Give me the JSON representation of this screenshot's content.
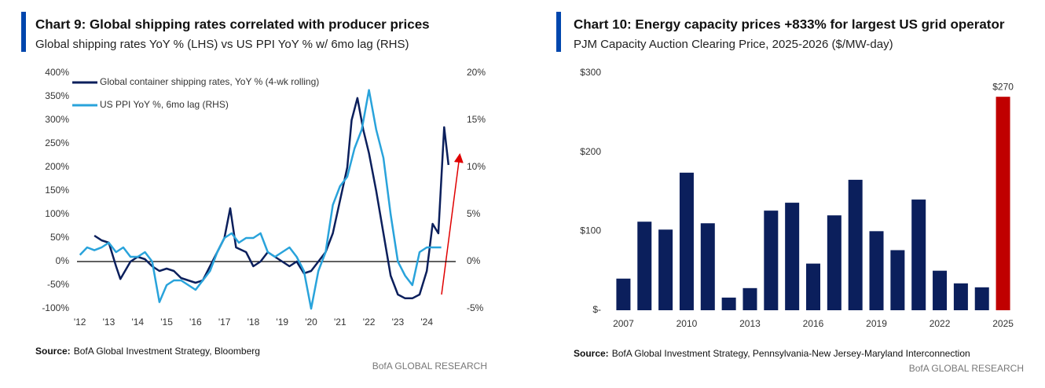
{
  "chart_data": [
    {
      "type": "line",
      "title": "Chart 9: Global shipping rates correlated with producer prices",
      "subtitle": "Global shipping rates YoY % (LHS) vs US PPI YoY % w/ 6mo lag (RHS)",
      "source_label": "Source:",
      "source": "BofA Global Investment Strategy, Bloomberg",
      "credit": "BofA GLOBAL RESEARCH",
      "legend": "upper left",
      "zero_line": true,
      "xlim": [
        2011.9,
        2025.0
      ],
      "xticks": [
        {
          "value": 2012,
          "label": "'12"
        },
        {
          "value": 2013,
          "label": "'13"
        },
        {
          "value": 2014,
          "label": "'14"
        },
        {
          "value": 2015,
          "label": "'15"
        },
        {
          "value": 2016,
          "label": "'16"
        },
        {
          "value": 2017,
          "label": "'17"
        },
        {
          "value": 2018,
          "label": "'18"
        },
        {
          "value": 2019,
          "label": "'19"
        },
        {
          "value": 2020,
          "label": "'20"
        },
        {
          "value": 2021,
          "label": "'21"
        },
        {
          "value": 2022,
          "label": "'22"
        },
        {
          "value": 2023,
          "label": "'23"
        },
        {
          "value": 2024,
          "label": "'24"
        }
      ],
      "ylim": [
        -100,
        400
      ],
      "yticks": [
        {
          "value": 400,
          "label": "400%"
        },
        {
          "value": 350,
          "label": "350%"
        },
        {
          "value": 300,
          "label": "300%"
        },
        {
          "value": 250,
          "label": "250%"
        },
        {
          "value": 200,
          "label": "200%"
        },
        {
          "value": 150,
          "label": "150%"
        },
        {
          "value": 100,
          "label": "100%"
        },
        {
          "value": 50,
          "label": "50%"
        },
        {
          "value": 0,
          "label": "0%"
        },
        {
          "value": -50,
          "label": "-50%"
        },
        {
          "value": -100,
          "label": "-100%"
        }
      ],
      "y2lim": [
        -5,
        20
      ],
      "y2ticks": [
        {
          "value": 20,
          "label": "20%"
        },
        {
          "value": 15,
          "label": "15%"
        },
        {
          "value": 10,
          "label": "10%"
        },
        {
          "value": 5,
          "label": "5%"
        },
        {
          "value": 0,
          "label": "0%"
        },
        {
          "value": -5,
          "label": "-5%"
        }
      ],
      "series": [
        {
          "name": "Global container shipping rates, YoY % (4-wk rolling)",
          "color": "#0b1f5c",
          "x": [
            2012.5,
            2012.75,
            2013.0,
            2013.25,
            2013.4,
            2013.75,
            2014.0,
            2014.25,
            2014.5,
            2014.75,
            2015.0,
            2015.25,
            2015.5,
            2015.75,
            2016.0,
            2016.25,
            2016.5,
            2016.75,
            2017.0,
            2017.2,
            2017.4,
            2017.75,
            2018.0,
            2018.25,
            2018.5,
            2018.75,
            2019.0,
            2019.25,
            2019.5,
            2019.75,
            2020.0,
            2020.25,
            2020.5,
            2020.75,
            2021.0,
            2021.25,
            2021.4,
            2021.6,
            2021.8,
            2022.0,
            2022.25,
            2022.5,
            2022.75,
            2023.0,
            2023.25,
            2023.5,
            2023.75,
            2024.0,
            2024.2,
            2024.4,
            2024.6,
            2024.75
          ],
          "values": [
            55,
            45,
            40,
            -10,
            -37,
            0,
            10,
            5,
            -10,
            -20,
            -15,
            -20,
            -35,
            -40,
            -45,
            -40,
            -10,
            20,
            50,
            113,
            30,
            20,
            -10,
            0,
            20,
            10,
            0,
            -10,
            0,
            -25,
            -20,
            0,
            20,
            60,
            130,
            200,
            300,
            347,
            280,
            230,
            150,
            60,
            -30,
            -70,
            -78,
            -78,
            -70,
            -20,
            80,
            60,
            285,
            205
          ]
        },
        {
          "name": "US PPI YoY %, 6mo lag (RHS)",
          "color": "#29a3db",
          "axis": "y2",
          "x": [
            2012.0,
            2012.25,
            2012.5,
            2012.75,
            2013.0,
            2013.25,
            2013.5,
            2013.75,
            2014.0,
            2014.25,
            2014.5,
            2014.75,
            2015.0,
            2015.25,
            2015.5,
            2015.75,
            2016.0,
            2016.25,
            2016.5,
            2016.75,
            2017.0,
            2017.25,
            2017.5,
            2017.75,
            2018.0,
            2018.25,
            2018.5,
            2018.75,
            2019.0,
            2019.25,
            2019.5,
            2019.75,
            2020.0,
            2020.25,
            2020.5,
            2020.75,
            2021.0,
            2021.25,
            2021.5,
            2021.75,
            2022.0,
            2022.25,
            2022.5,
            2022.75,
            2023.0,
            2023.25,
            2023.5,
            2023.75,
            2024.0,
            2024.25,
            2024.5
          ],
          "values": [
            0.7,
            1.5,
            1.2,
            1.5,
            2,
            1,
            1.5,
            0.5,
            0.5,
            1,
            0,
            -4.3,
            -2.5,
            -2,
            -2,
            -2.5,
            -3,
            -2,
            -1,
            1,
            2.5,
            3,
            2,
            2.5,
            2.5,
            3,
            1,
            0.5,
            1,
            1.5,
            0.5,
            -1,
            -5,
            -1,
            1,
            6,
            8,
            9,
            12,
            14,
            18.2,
            14,
            11,
            5,
            0,
            -1.5,
            -2.5,
            1,
            1.5,
            1.5,
            1.5
          ]
        }
      ]
    },
    {
      "type": "bar",
      "title": "Chart 10: Energy capacity prices +833% for largest US grid operator",
      "subtitle": "PJM Capacity Auction Clearing Price, 2025-2026 ($/MW-day)",
      "source_label": "Source:",
      "source": "BofA Global Investment Strategy, Pennsylvania-New Jersey-Maryland Interconnection",
      "credit": "BofA GLOBAL RESEARCH",
      "categories": [
        "2007",
        null,
        null,
        "2010",
        null,
        null,
        "2013",
        null,
        null,
        "2016",
        null,
        null,
        "2019",
        null,
        null,
        "2022",
        null,
        null,
        "2025"
      ],
      "values": [
        40,
        112,
        102,
        174,
        110,
        16,
        28,
        126,
        136,
        59,
        120,
        165,
        100,
        76,
        140,
        50,
        34,
        29,
        270
      ],
      "value_labels": [
        null,
        null,
        null,
        null,
        null,
        null,
        null,
        null,
        null,
        null,
        null,
        null,
        null,
        null,
        null,
        null,
        null,
        null,
        "$270"
      ],
      "colors": [
        "#0b1f5c",
        "#0b1f5c",
        "#0b1f5c",
        "#0b1f5c",
        "#0b1f5c",
        "#0b1f5c",
        "#0b1f5c",
        "#0b1f5c",
        "#0b1f5c",
        "#0b1f5c",
        "#0b1f5c",
        "#0b1f5c",
        "#0b1f5c",
        "#0b1f5c",
        "#0b1f5c",
        "#0b1f5c",
        "#0b1f5c",
        "#0b1f5c",
        "#c00000"
      ],
      "ylim": [
        0,
        300
      ],
      "yticks": [
        {
          "value": 300,
          "label": "$300"
        },
        {
          "value": 200,
          "label": "$200"
        },
        {
          "value": 100,
          "label": "$100"
        },
        {
          "value": 0,
          "label": "$-"
        }
      ]
    }
  ]
}
